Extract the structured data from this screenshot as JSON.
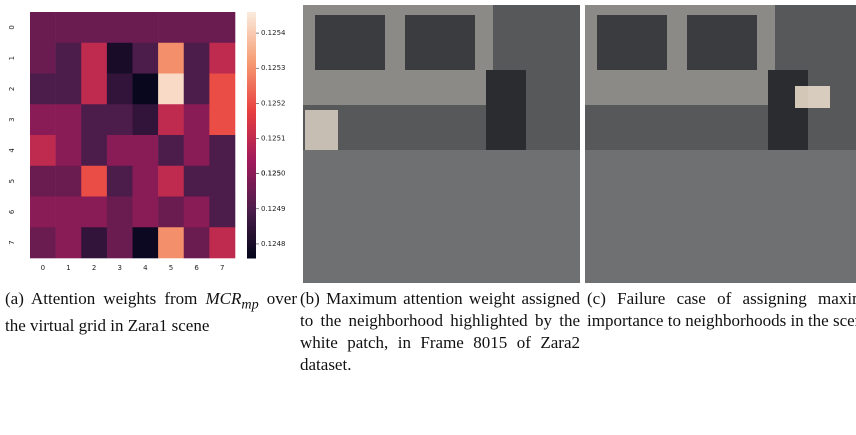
{
  "chart_data": {
    "type": "heatmap",
    "x_labels": [
      0,
      1,
      2,
      3,
      4,
      5,
      6,
      7
    ],
    "y_labels": [
      0,
      1,
      2,
      3,
      4,
      5,
      6,
      7
    ],
    "values": [
      [
        0.12495,
        0.12495,
        0.12495,
        0.12495,
        0.12495,
        0.12495,
        0.12495,
        0.12495
      ],
      [
        0.12495,
        0.1249,
        0.1251,
        0.1248,
        0.1249,
        0.1253,
        0.1249,
        0.1251
      ],
      [
        0.1249,
        0.1249,
        0.1251,
        0.12485,
        0.12477,
        0.12543,
        0.1249,
        0.1252
      ],
      [
        0.125,
        0.125,
        0.1249,
        0.1249,
        0.12485,
        0.1251,
        0.125,
        0.1252
      ],
      [
        0.1251,
        0.125,
        0.1249,
        0.125,
        0.125,
        0.1249,
        0.125,
        0.1249
      ],
      [
        0.12495,
        0.12495,
        0.1252,
        0.1249,
        0.125,
        0.1251,
        0.1249,
        0.1249
      ],
      [
        0.125,
        0.125,
        0.125,
        0.12495,
        0.125,
        0.12495,
        0.125,
        0.1249
      ],
      [
        0.12495,
        0.125,
        0.12485,
        0.12495,
        0.12478,
        0.1253,
        0.12495,
        0.1251
      ]
    ],
    "zlim": [
      0.12476,
      0.12546
    ],
    "zticks": [
      0.1248,
      0.1249,
      0.125,
      {
        "value": 0.125,
        "label": "0.1250"
      },
      0.1251,
      0.1252,
      0.1253,
      0.1254
    ],
    "colors": [
      "#03051a",
      "#4c1d4b",
      "#a11a5b",
      "#e83f3f",
      "#f69c73",
      "#faebdd"
    ]
  },
  "captions": {
    "a": {
      "lead": "(a) Attention weights from",
      "symbol": "MCR",
      "subscript": "mp",
      "rest": "over the virtual grid in Zara1 scene"
    },
    "b": "(b) Maximum attention weight assigned to the neighborhood highlighted by the white patch, in Frame 8015 of Zara2 dataset.",
    "c": "(c) Failure case of assigning maximum importance to neighborhoods in the scene"
  }
}
